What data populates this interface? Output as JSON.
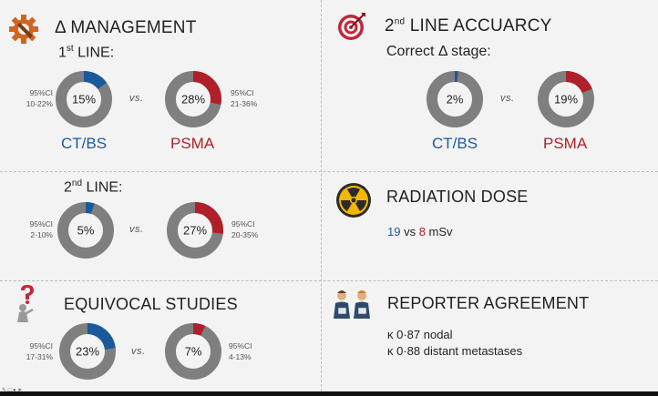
{
  "sections": {
    "management": {
      "title_prefix": "Δ MANAGEMENT",
      "icon": "gear-wrench-icon"
    },
    "accuracy": {
      "title_main": "2",
      "title_sup": "nd",
      "title_rest": " LINE ACCUARCY",
      "icon": "target-icon",
      "subtitle": "Correct Δ stage:"
    },
    "first_line": {
      "main": "1",
      "sup": "st",
      "rest": " LINE:"
    },
    "second_line": {
      "main": "2",
      "sup": "nd",
      "rest": " LINE:"
    },
    "radiation": {
      "title": "RADIATION DOSE",
      "icon": "radiation-icon",
      "value_a": "19",
      "vs": " vs ",
      "value_b": "8",
      "unit": " mSv"
    },
    "equivocal": {
      "title": "EQUIVOCAL STUDIES",
      "icon": "question-person-icon"
    },
    "reporter": {
      "title": "REPORTER AGREEMENT",
      "icon": "reporters-icon",
      "line1": "κ 0·87 nodal",
      "line2": "κ 0·88 distant metastases"
    }
  },
  "vs_label": "vs.",
  "donuts": {
    "m1_ct": {
      "pct": 15,
      "label": "15%",
      "color": "#1a5a9c"
    },
    "m1_psma": {
      "pct": 28,
      "label": "28%",
      "color": "#b0202a"
    },
    "m2_ct": {
      "pct": 5,
      "label": "5%",
      "color": "#1a5a9c"
    },
    "m2_psma": {
      "pct": 27,
      "label": "27%",
      "color": "#b0202a"
    },
    "acc_ct": {
      "pct": 2,
      "label": "2%",
      "color": "#1a5a9c"
    },
    "acc_psma": {
      "pct": 19,
      "label": "19%",
      "color": "#b0202a"
    },
    "eq_ct": {
      "pct": 23,
      "label": "23%",
      "color": "#1a5a9c"
    },
    "eq_psma": {
      "pct": 7,
      "label": "7%",
      "color": "#b0202a"
    }
  },
  "ci": {
    "m1_ct": {
      "l1": "95%CI",
      "l2": "10-22%"
    },
    "m1_psma": {
      "l1": "95%CI",
      "l2": "21-36%"
    },
    "m2_ct": {
      "l1": "95%CI",
      "l2": "2-10%"
    },
    "m2_psma": {
      "l1": "95%CI",
      "l2": "20-35%"
    },
    "eq_ct": {
      "l1": "95%CI",
      "l2": "17-31%"
    },
    "eq_psma": {
      "l1": "95%CI",
      "l2": "4-13%"
    }
  },
  "labels": {
    "ct": "CT/BS",
    "psma": "PSMA"
  },
  "colors": {
    "ring": "#7f7f7f",
    "blue": "#1a5a9c",
    "red": "#b0202a",
    "background": "#f3f3f3"
  }
}
